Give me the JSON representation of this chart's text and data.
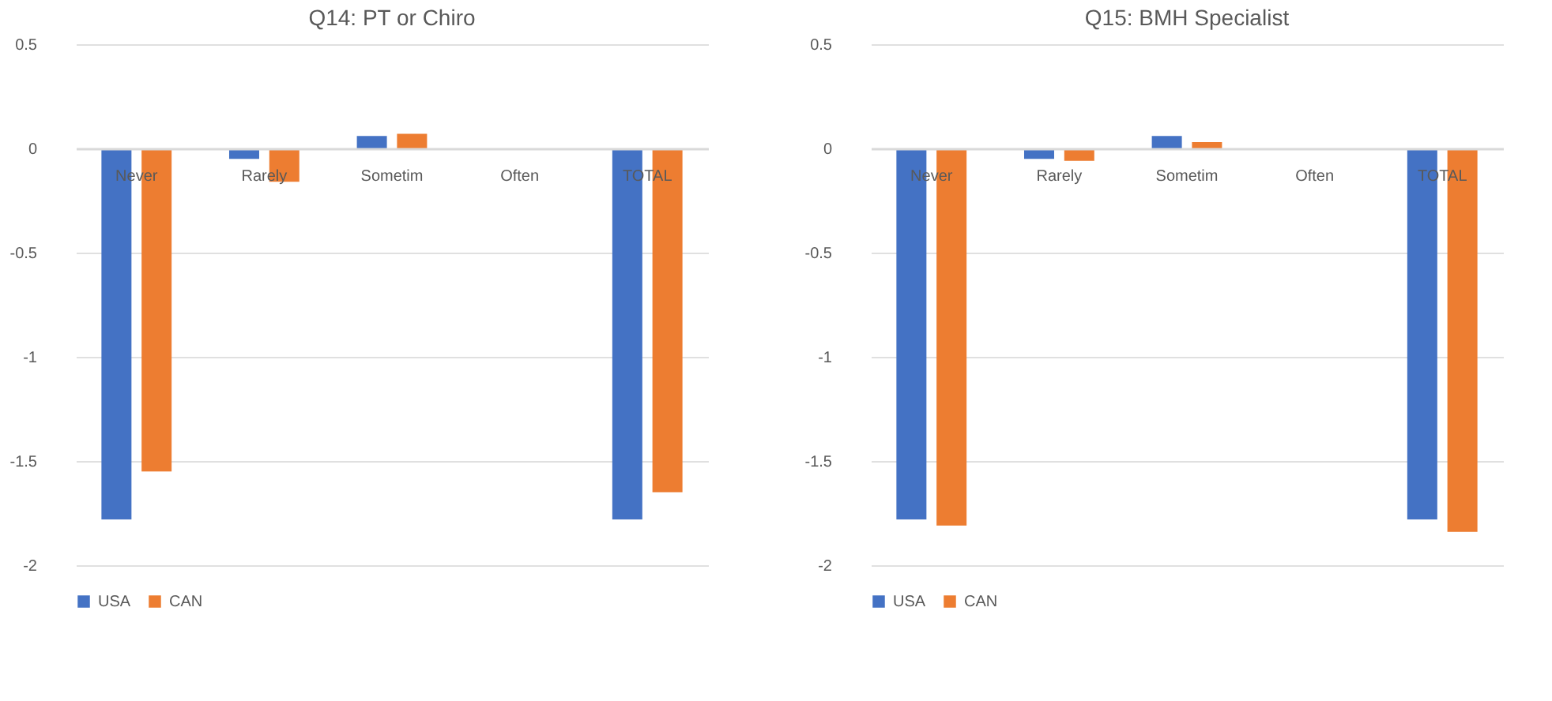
{
  "chart_data": [
    {
      "type": "bar",
      "title": "Q14: PT or Chiro",
      "categories": [
        "Never",
        "Rarely",
        "Sometim",
        "Often",
        "TOTAL"
      ],
      "series": [
        {
          "name": "USA",
          "color": "#4472c4",
          "values": [
            -1.78,
            -0.05,
            0.06,
            0,
            -1.78
          ]
        },
        {
          "name": "CAN",
          "color": "#ed7d31",
          "values": [
            -1.55,
            -0.16,
            0.07,
            0,
            -1.65
          ]
        }
      ],
      "ylim": [
        -2,
        0.5
      ],
      "yticks": [
        {
          "value": -2,
          "label": "-2"
        },
        {
          "value": -1.5,
          "label": "-1.5"
        },
        {
          "value": -1,
          "label": "-1"
        },
        {
          "value": -0.5,
          "label": "-0.5"
        },
        {
          "value": 0,
          "label": "0"
        },
        {
          "value": 0.5,
          "label": "0.5"
        }
      ],
      "grid": "y",
      "legend": "bottom"
    },
    {
      "type": "bar",
      "title": "Q15: BMH Specialist",
      "categories": [
        "Never",
        "Rarely",
        "Sometim",
        "Often",
        "TOTAL"
      ],
      "series": [
        {
          "name": "USA",
          "color": "#4472c4",
          "values": [
            -1.78,
            -0.05,
            0.06,
            0,
            -1.78
          ]
        },
        {
          "name": "CAN",
          "color": "#ed7d31",
          "values": [
            -1.81,
            -0.06,
            0.03,
            0,
            -1.84
          ]
        }
      ],
      "ylim": [
        -2,
        0.5
      ],
      "yticks": [
        {
          "value": -2,
          "label": "-2"
        },
        {
          "value": -1.5,
          "label": "-1.5"
        },
        {
          "value": -1,
          "label": "-1"
        },
        {
          "value": -0.5,
          "label": "-0.5"
        },
        {
          "value": 0,
          "label": "0"
        },
        {
          "value": 0.5,
          "label": "0.5"
        }
      ],
      "grid": "y",
      "legend": "bottom"
    }
  ]
}
